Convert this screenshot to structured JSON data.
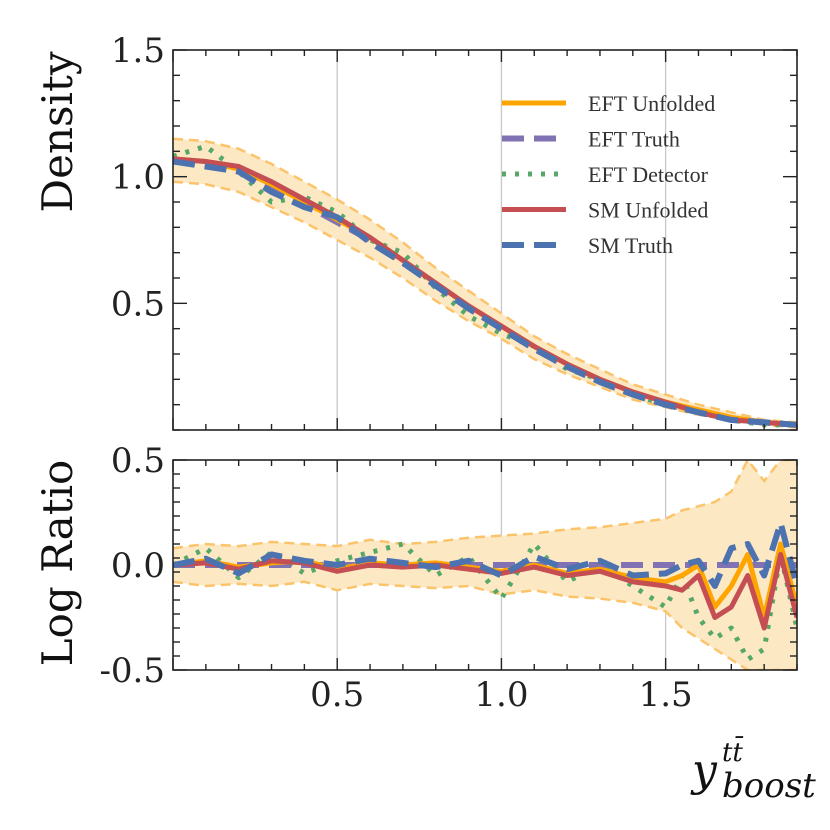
{
  "chart_data": [
    {
      "type": "line",
      "panel": "top",
      "ylabel": "Density",
      "xlim": [
        0.0,
        1.9
      ],
      "ylim": [
        0.0,
        1.5
      ],
      "yticks": [
        0.5,
        1.0,
        1.5
      ],
      "ytick_labels": [
        "0.5",
        "1.0",
        "1.5"
      ],
      "vlines": [
        0.5,
        1.0,
        1.5
      ],
      "legend_position": "top-right",
      "x": [
        0.0,
        0.1,
        0.2,
        0.3,
        0.4,
        0.5,
        0.6,
        0.7,
        0.8,
        0.9,
        1.0,
        1.1,
        1.2,
        1.3,
        1.4,
        1.5,
        1.6,
        1.7,
        1.8,
        1.9
      ],
      "band": {
        "name": "EFT Unfolded uncertainty",
        "lower": [
          0.98,
          0.97,
          0.94,
          0.88,
          0.82,
          0.75,
          0.68,
          0.6,
          0.51,
          0.43,
          0.36,
          0.28,
          0.22,
          0.17,
          0.12,
          0.09,
          0.06,
          0.04,
          0.02,
          0.01
        ],
        "upper": [
          1.15,
          1.14,
          1.11,
          1.05,
          0.98,
          0.91,
          0.83,
          0.74,
          0.64,
          0.55,
          0.46,
          0.37,
          0.3,
          0.24,
          0.18,
          0.14,
          0.1,
          0.07,
          0.04,
          0.03
        ]
      },
      "series": [
        {
          "name": "EFT Unfolded",
          "values": [
            1.07,
            1.06,
            1.03,
            0.97,
            0.9,
            0.83,
            0.76,
            0.67,
            0.58,
            0.49,
            0.41,
            0.33,
            0.26,
            0.2,
            0.15,
            0.11,
            0.08,
            0.05,
            0.03,
            0.02
          ]
        },
        {
          "name": "EFT Truth",
          "values": [
            1.06,
            1.05,
            1.02,
            0.96,
            0.89,
            0.82,
            0.75,
            0.66,
            0.57,
            0.48,
            0.4,
            0.32,
            0.25,
            0.19,
            0.14,
            0.1,
            0.07,
            0.04,
            0.03,
            0.02
          ]
        },
        {
          "name": "EFT Detector",
          "values": [
            1.08,
            1.12,
            1.02,
            0.9,
            0.92,
            0.86,
            0.75,
            0.7,
            0.56,
            0.45,
            0.38,
            0.33,
            0.24,
            0.2,
            0.14,
            0.1,
            0.07,
            0.04,
            0.02,
            0.02
          ]
        },
        {
          "name": "SM Unfolded",
          "values": [
            1.07,
            1.06,
            1.04,
            0.98,
            0.91,
            0.84,
            0.76,
            0.67,
            0.58,
            0.49,
            0.41,
            0.33,
            0.26,
            0.2,
            0.15,
            0.11,
            0.07,
            0.04,
            0.03,
            0.02
          ]
        },
        {
          "name": "SM Truth",
          "values": [
            1.06,
            1.04,
            1.02,
            0.94,
            0.88,
            0.84,
            0.74,
            0.66,
            0.57,
            0.48,
            0.4,
            0.32,
            0.25,
            0.19,
            0.14,
            0.1,
            0.07,
            0.04,
            0.03,
            0.02
          ]
        }
      ]
    },
    {
      "type": "line",
      "panel": "bottom",
      "ylabel": "Log Ratio",
      "xlabel_base": "y",
      "xlabel_sup": "tt̄",
      "xlabel_sub": "boost",
      "xlim": [
        0.0,
        1.9
      ],
      "ylim": [
        -0.5,
        0.5
      ],
      "yticks": [
        -0.5,
        0.0,
        0.5
      ],
      "ytick_labels": [
        "-0.5",
        "0.0",
        "0.5"
      ],
      "xticks": [
        0.5,
        1.0,
        1.5
      ],
      "xtick_labels": [
        "0.5",
        "1.0",
        "1.5"
      ],
      "vlines": [
        0.5,
        1.0,
        1.5
      ],
      "x": [
        0.0,
        0.1,
        0.2,
        0.3,
        0.4,
        0.5,
        0.6,
        0.7,
        0.8,
        0.9,
        1.0,
        1.1,
        1.2,
        1.3,
        1.4,
        1.5,
        1.55,
        1.6,
        1.65,
        1.7,
        1.75,
        1.8,
        1.85,
        1.9
      ],
      "band": {
        "name": "EFT Unfolded uncertainty",
        "lower": [
          -0.08,
          -0.1,
          -0.09,
          -0.1,
          -0.08,
          -0.12,
          -0.09,
          -0.1,
          -0.11,
          -0.1,
          -0.14,
          -0.12,
          -0.15,
          -0.16,
          -0.18,
          -0.22,
          -0.3,
          -0.35,
          -0.4,
          -0.45,
          -0.5,
          -0.5,
          -0.5,
          -0.5
        ],
        "upper": [
          0.08,
          0.1,
          0.09,
          0.11,
          0.1,
          0.09,
          0.12,
          0.1,
          0.11,
          0.13,
          0.14,
          0.15,
          0.17,
          0.18,
          0.2,
          0.22,
          0.26,
          0.28,
          0.3,
          0.35,
          0.5,
          0.4,
          0.5,
          0.5
        ]
      },
      "series": [
        {
          "name": "EFT Unfolded",
          "values": [
            0.0,
            0.02,
            -0.01,
            0.01,
            0.02,
            -0.02,
            0.01,
            0.0,
            0.01,
            -0.01,
            -0.03,
            0.0,
            -0.04,
            -0.02,
            -0.06,
            -0.08,
            -0.05,
            0.0,
            -0.2,
            -0.1,
            0.05,
            -0.25,
            0.1,
            -0.2
          ]
        },
        {
          "name": "EFT Truth",
          "values": [
            0.0,
            0.0,
            0.0,
            0.0,
            0.0,
            0.0,
            0.0,
            0.0,
            0.0,
            0.0,
            0.0,
            0.0,
            0.0,
            0.0,
            0.0,
            0.0,
            0.0,
            0.0,
            0.0,
            0.0,
            0.0,
            0.0,
            0.0,
            0.0
          ]
        },
        {
          "name": "EFT Detector",
          "values": [
            0.0,
            0.08,
            -0.06,
            0.06,
            -0.04,
            0.02,
            0.06,
            0.1,
            -0.05,
            0.04,
            -0.16,
            0.1,
            -0.08,
            0.0,
            -0.1,
            -0.2,
            -0.05,
            -0.25,
            -0.35,
            -0.3,
            -0.45,
            -0.4,
            0.05,
            -0.3
          ]
        },
        {
          "name": "SM Unfolded",
          "values": [
            0.0,
            0.01,
            -0.02,
            0.02,
            0.01,
            -0.03,
            0.0,
            -0.01,
            0.0,
            -0.02,
            -0.04,
            -0.01,
            -0.05,
            -0.03,
            -0.08,
            -0.1,
            -0.12,
            -0.05,
            -0.25,
            -0.2,
            -0.05,
            -0.3,
            0.05,
            -0.25
          ]
        },
        {
          "name": "SM Truth",
          "values": [
            0.0,
            0.03,
            -0.04,
            0.05,
            0.02,
            0.0,
            0.03,
            0.01,
            -0.01,
            0.02,
            -0.05,
            0.04,
            -0.02,
            0.02,
            -0.05,
            -0.04,
            0.0,
            0.02,
            -0.1,
            0.08,
            0.1,
            -0.05,
            0.2,
            -0.1
          ]
        }
      ]
    }
  ],
  "legend": {
    "items": [
      {
        "label": "EFT Unfolded",
        "color": "#ffa500",
        "dash": "solid"
      },
      {
        "label": "EFT Truth",
        "color": "#8172b3",
        "dash": "dashed"
      },
      {
        "label": "EFT Detector",
        "color": "#55a868",
        "dash": "dotted"
      },
      {
        "label": "SM Unfolded",
        "color": "#c44e52",
        "dash": "solid"
      },
      {
        "label": "SM Truth",
        "color": "#4c72b0",
        "dash": "dashed"
      }
    ]
  },
  "colors": {
    "band_fill": "#fde8c4",
    "band_edge": "#fbc46b",
    "grid": "#c8c8c8"
  }
}
